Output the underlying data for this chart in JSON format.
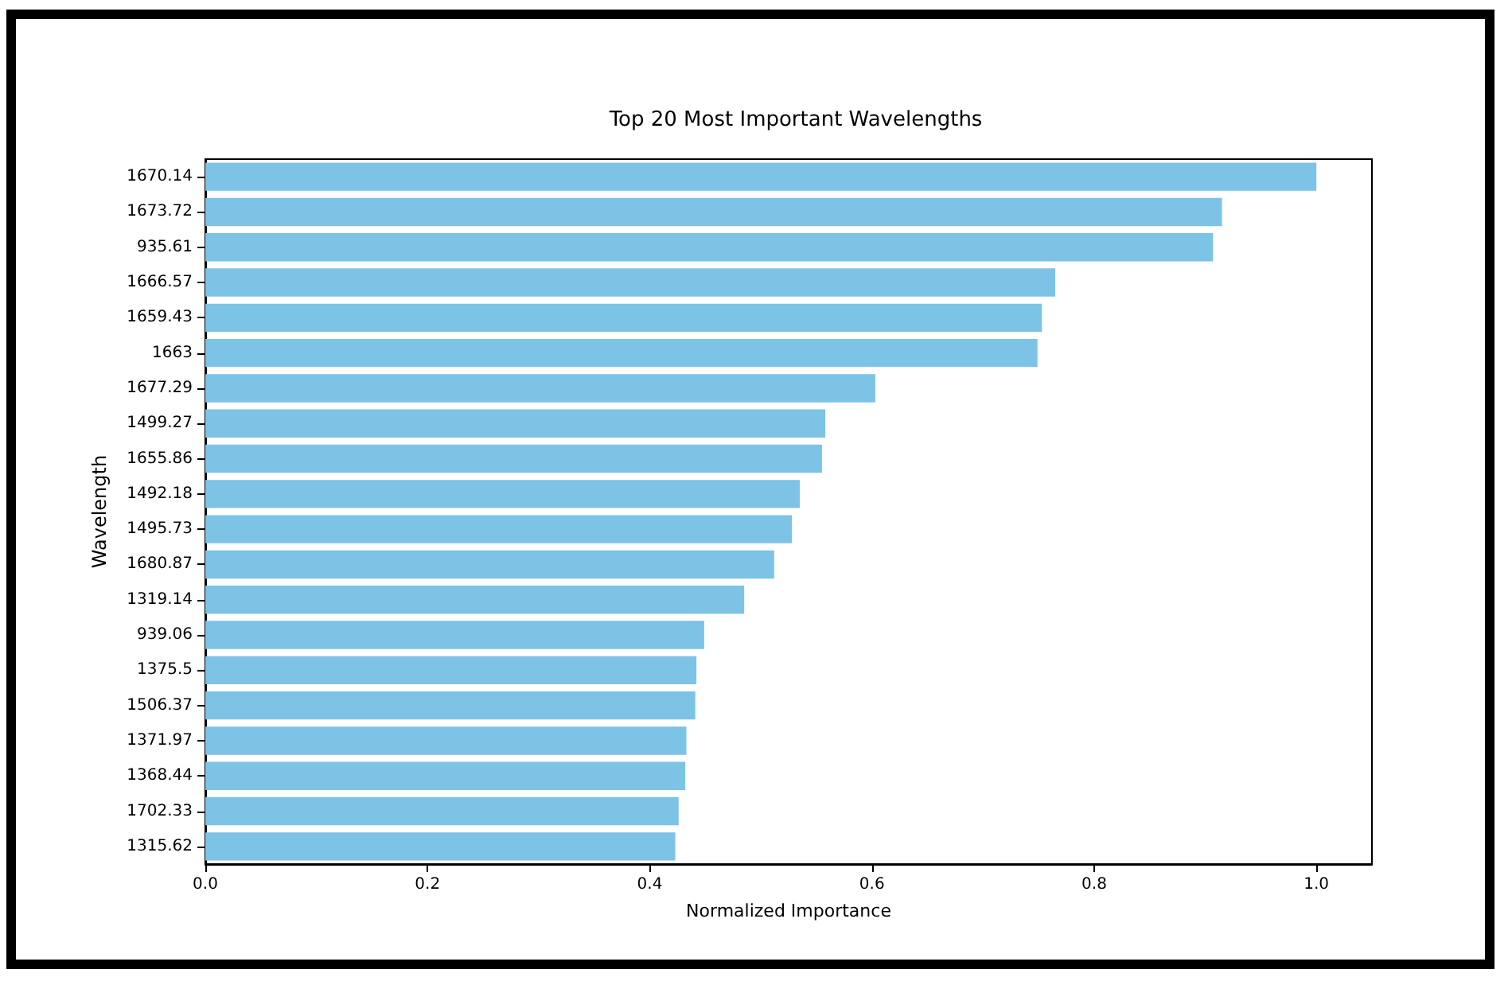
{
  "chart_data": {
    "type": "bar",
    "orientation": "horizontal",
    "title": "Top 20 Most Important Wavelengths",
    "xlabel": "Normalized Importance",
    "ylabel": "Wavelength",
    "categories": [
      "1670.14",
      "1673.72",
      "935.61",
      "1666.57",
      "1659.43",
      "1663",
      "1677.29",
      "1499.27",
      "1655.86",
      "1492.18",
      "1495.73",
      "1680.87",
      "1319.14",
      "939.06",
      "1375.5",
      "1506.37",
      "1371.97",
      "1368.44",
      "1702.33",
      "1315.62"
    ],
    "values": [
      1.0,
      0.915,
      0.907,
      0.765,
      0.753,
      0.749,
      0.603,
      0.558,
      0.555,
      0.535,
      0.528,
      0.512,
      0.485,
      0.449,
      0.442,
      0.441,
      0.433,
      0.432,
      0.426,
      0.423
    ],
    "color": "#7cc3e6",
    "xlim": [
      0,
      1.05
    ],
    "xticks": [
      {
        "value": 0,
        "label": "0.0"
      },
      {
        "value": 0.2,
        "label": "0.2"
      },
      {
        "value": 0.4,
        "label": "0.4"
      },
      {
        "value": 0.6,
        "label": "0.6"
      },
      {
        "value": 0.8,
        "label": "0.8"
      },
      {
        "value": 1,
        "label": "1.0"
      }
    ],
    "grid": false
  }
}
